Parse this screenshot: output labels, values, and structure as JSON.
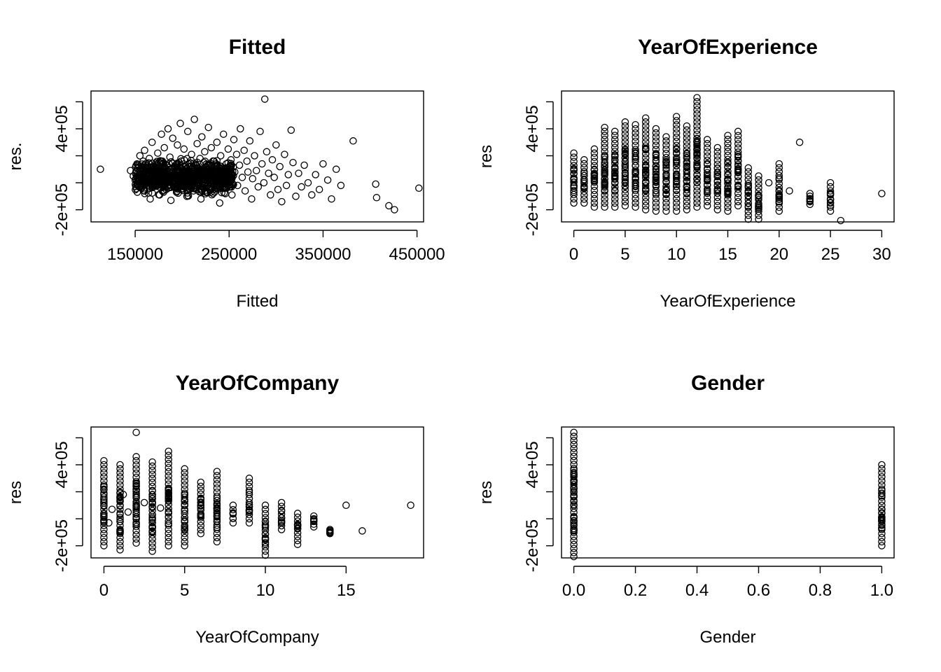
{
  "chart_data": [
    {
      "type": "scatter",
      "title": "Fitted",
      "xlabel": "Fitted",
      "ylabel": "res.",
      "xlim": [
        103000,
        457000
      ],
      "ylim": [
        -290000,
        680000
      ],
      "xticks": [
        150000,
        250000,
        350000,
        450000
      ],
      "xtick_labels": [
        "150000",
        "250000",
        "350000",
        "450000"
      ],
      "yticks": [
        -200000,
        0,
        200000,
        400000,
        600000
      ],
      "ytick_labels": [
        "-2e+05",
        "",
        "4e+05",
        "",
        ""
      ],
      "ytick_text": [
        "-2e+05",
        "4e+05"
      ],
      "points": [
        [
          113000,
          100000
        ],
        [
          145000,
          90000
        ],
        [
          148000,
          50000
        ],
        [
          150000,
          20000
        ],
        [
          152000,
          140000
        ],
        [
          154000,
          -30000
        ],
        [
          155000,
          200000
        ],
        [
          157000,
          60000
        ],
        [
          160000,
          -60000
        ],
        [
          160000,
          240000
        ],
        [
          162000,
          110000
        ],
        [
          163000,
          0
        ],
        [
          165000,
          180000
        ],
        [
          166000,
          -120000
        ],
        [
          168000,
          300000
        ],
        [
          168000,
          70000
        ],
        [
          170000,
          -20000
        ],
        [
          172000,
          130000
        ],
        [
          174000,
          220000
        ],
        [
          175000,
          40000
        ],
        [
          176000,
          -90000
        ],
        [
          178000,
          360000
        ],
        [
          179000,
          160000
        ],
        [
          180000,
          10000
        ],
        [
          181000,
          260000
        ],
        [
          183000,
          -50000
        ],
        [
          184000,
          90000
        ],
        [
          185000,
          400000
        ],
        [
          187000,
          190000
        ],
        [
          188000,
          -130000
        ],
        [
          190000,
          330000
        ],
        [
          191000,
          50000
        ],
        [
          193000,
          120000
        ],
        [
          194000,
          -70000
        ],
        [
          195000,
          280000
        ],
        [
          196000,
          20000
        ],
        [
          198000,
          440000
        ],
        [
          199000,
          160000
        ],
        [
          200000,
          -20000
        ],
        [
          202000,
          250000
        ],
        [
          203000,
          80000
        ],
        [
          205000,
          -100000
        ],
        [
          206000,
          380000
        ],
        [
          207000,
          140000
        ],
        [
          209000,
          30000
        ],
        [
          210000,
          210000
        ],
        [
          212000,
          -60000
        ],
        [
          213000,
          470000
        ],
        [
          214000,
          110000
        ],
        [
          216000,
          290000
        ],
        [
          217000,
          0
        ],
        [
          219000,
          180000
        ],
        [
          220000,
          -120000
        ],
        [
          221000,
          340000
        ],
        [
          223000,
          70000
        ],
        [
          224000,
          230000
        ],
        [
          226000,
          -30000
        ],
        [
          227000,
          130000
        ],
        [
          228000,
          410000
        ],
        [
          230000,
          50000
        ],
        [
          231000,
          260000
        ],
        [
          233000,
          -80000
        ],
        [
          234000,
          160000
        ],
        [
          236000,
          20000
        ],
        [
          237000,
          300000
        ],
        [
          238000,
          100000
        ],
        [
          240000,
          -150000
        ],
        [
          241000,
          200000
        ],
        [
          243000,
          60000
        ],
        [
          244000,
          360000
        ],
        [
          246000,
          -40000
        ],
        [
          247000,
          140000
        ],
        [
          249000,
          250000
        ],
        [
          250000,
          10000
        ],
        [
          252000,
          170000
        ],
        [
          253000,
          -90000
        ],
        [
          255000,
          320000
        ],
        [
          256000,
          80000
        ],
        [
          258000,
          210000
        ],
        [
          259000,
          -20000
        ],
        [
          261000,
          130000
        ],
        [
          262000,
          400000
        ],
        [
          264000,
          40000
        ],
        [
          266000,
          240000
        ],
        [
          267000,
          -60000
        ],
        [
          269000,
          160000
        ],
        [
          270000,
          80000
        ],
        [
          272000,
          310000
        ],
        [
          274000,
          -120000
        ],
        [
          275000,
          30000
        ],
        [
          277000,
          200000
        ],
        [
          279000,
          90000
        ],
        [
          281000,
          -30000
        ],
        [
          283000,
          380000
        ],
        [
          285000,
          140000
        ],
        [
          287000,
          0
        ],
        [
          288000,
          620000
        ],
        [
          290000,
          230000
        ],
        [
          292000,
          70000
        ],
        [
          294000,
          -90000
        ],
        [
          296000,
          170000
        ],
        [
          298000,
          40000
        ],
        [
          300000,
          280000
        ],
        [
          302000,
          -50000
        ],
        [
          304000,
          120000
        ],
        [
          306000,
          -140000
        ],
        [
          309000,
          210000
        ],
        [
          311000,
          -20000
        ],
        [
          313000,
          60000
        ],
        [
          316000,
          390000
        ],
        [
          318000,
          150000
        ],
        [
          321000,
          -100000
        ],
        [
          324000,
          70000
        ],
        [
          327000,
          -30000
        ],
        [
          330000,
          130000
        ],
        [
          334000,
          0
        ],
        [
          338000,
          -90000
        ],
        [
          342000,
          60000
        ],
        [
          346000,
          -50000
        ],
        [
          350000,
          140000
        ],
        [
          355000,
          20000
        ],
        [
          359000,
          -120000
        ],
        [
          364000,
          100000
        ],
        [
          369000,
          -20000
        ],
        [
          382000,
          310000
        ],
        [
          406000,
          -10000
        ],
        [
          407000,
          -110000
        ],
        [
          420000,
          -170000
        ],
        [
          426000,
          -200000
        ],
        [
          452000,
          -40000
        ]
      ]
    },
    {
      "type": "scatter",
      "title": "YearOfExperience",
      "xlabel": "YearOfExperience",
      "ylabel": "res",
      "xlim": [
        -1.2,
        31.2
      ],
      "ylim": [
        -290000,
        680000
      ],
      "xticks": [
        0,
        5,
        10,
        15,
        20,
        25,
        30
      ],
      "xtick_labels": [
        "0",
        "5",
        "10",
        "15",
        "20",
        "25",
        "30"
      ],
      "yticks": [
        -200000,
        0,
        200000,
        400000,
        600000
      ],
      "ytick_labels": [
        "-2e+05",
        "",
        "4e+05",
        "",
        ""
      ],
      "ytick_text": [
        "-2e+05",
        "4e+05"
      ],
      "columns": [
        [
          0,
          -150000,
          220000
        ],
        [
          1,
          -150000,
          170000
        ],
        [
          2,
          -180000,
          250000
        ],
        [
          3,
          -180000,
          410000
        ],
        [
          4,
          -180000,
          380000
        ],
        [
          5,
          -170000,
          450000
        ],
        [
          6,
          -180000,
          430000
        ],
        [
          7,
          -200000,
          480000
        ],
        [
          8,
          -210000,
          400000
        ],
        [
          9,
          -210000,
          340000
        ],
        [
          10,
          -210000,
          490000
        ],
        [
          11,
          -200000,
          420000
        ],
        [
          12,
          -180000,
          630000
        ],
        [
          13,
          -170000,
          320000
        ],
        [
          14,
          -200000,
          260000
        ],
        [
          15,
          -210000,
          350000
        ],
        [
          16,
          -170000,
          380000
        ],
        [
          17,
          -270000,
          110000
        ],
        [
          18,
          -270000,
          50000
        ],
        [
          20,
          -210000,
          140000
        ],
        [
          23,
          -160000,
          -80000
        ],
        [
          25,
          -210000,
          0
        ],
        [
          26,
          -280000,
          -280000
        ],
        [
          30,
          -80000,
          -80000
        ],
        [
          22,
          300000,
          300000
        ],
        [
          19,
          0,
          0
        ],
        [
          21,
          -60000,
          -60000
        ]
      ]
    },
    {
      "type": "scatter",
      "title": "YearOfCompany",
      "xlabel": "YearOfCompany",
      "ylabel": "res",
      "xlim": [
        -0.8,
        19.8
      ],
      "ylim": [
        -290000,
        680000
      ],
      "xticks": [
        0,
        5,
        10,
        15
      ],
      "xtick_labels": [
        "0",
        "5",
        "10",
        "15"
      ],
      "yticks": [
        -200000,
        0,
        200000,
        400000,
        600000
      ],
      "ytick_labels": [
        "-2e+05",
        "",
        "4e+05",
        "",
        ""
      ],
      "ytick_text": [
        "-2e+05",
        "4e+05"
      ],
      "columns": [
        [
          0,
          -200000,
          430000
        ],
        [
          1,
          -230000,
          400000
        ],
        [
          2,
          -180000,
          460000
        ],
        [
          3,
          -240000,
          420000
        ],
        [
          4,
          -200000,
          500000
        ],
        [
          5,
          -200000,
          370000
        ],
        [
          6,
          -110000,
          270000
        ],
        [
          7,
          -170000,
          350000
        ],
        [
          8,
          -30000,
          100000
        ],
        [
          9,
          -30000,
          300000
        ],
        [
          10,
          -270000,
          100000
        ],
        [
          11,
          -80000,
          120000
        ],
        [
          12,
          -190000,
          40000
        ],
        [
          13,
          -60000,
          20000
        ],
        [
          14,
          -110000,
          -80000
        ],
        [
          15,
          100000,
          100000
        ],
        [
          16,
          -90000,
          -90000
        ],
        [
          19,
          100000,
          100000
        ],
        [
          2,
          640000,
          640000
        ]
      ],
      "extra_points": [
        [
          0.5,
          70000
        ],
        [
          1.5,
          50000
        ],
        [
          2.5,
          120000
        ],
        [
          3.5,
          80000
        ],
        [
          0.3,
          -30000
        ],
        [
          1.2,
          180000
        ]
      ]
    },
    {
      "type": "scatter",
      "title": "Gender",
      "xlabel": "Gender",
      "ylabel": "res",
      "xlim": [
        -0.04,
        1.04
      ],
      "ylim": [
        -290000,
        680000
      ],
      "xticks": [
        0.0,
        0.2,
        0.4,
        0.6,
        0.8,
        1.0
      ],
      "xtick_labels": [
        "0.0",
        "0.2",
        "0.4",
        "0.6",
        "0.8",
        "1.0"
      ],
      "yticks": [
        -200000,
        0,
        200000,
        400000,
        600000
      ],
      "ytick_labels": [
        "-2e+05",
        "",
        "4e+05",
        "",
        ""
      ],
      "ytick_text": [
        "-2e+05",
        "4e+05"
      ],
      "columns": [
        [
          0,
          -280000,
          640000
        ],
        [
          1,
          -200000,
          400000
        ]
      ]
    }
  ]
}
